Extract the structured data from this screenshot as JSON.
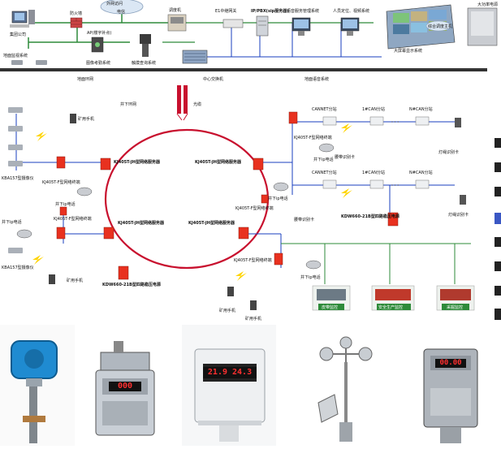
{
  "top": {
    "group_company": "集团公司",
    "firewall": "防火墙",
    "telecom": "电信",
    "outer_net": "外网访问",
    "modem": "调度机",
    "e1_gateway": "E1中继网关",
    "ip_pbx": "IP/PBX(sip服务器)",
    "voice_server": "语音服务管理系统",
    "locate_video": "人员定位、视频系统",
    "ap_ceiling": "AP(楼宇补点)",
    "attendance": "图像考勤系统",
    "touch_query": "触摸查询系统",
    "ground_video": "地面监视系统",
    "big_screen": "大屏幕显示系统",
    "mine_server": "综合调度主机",
    "power_supply": "大功率电源",
    "ground_ring": "地面环网",
    "center_switch": "中心交换机",
    "ground_voice": "地面语音系统"
  },
  "middle": {
    "underground_ring": "井下环网",
    "fiber": "光缆",
    "miner_phone_1": "矿用手机",
    "miner_phone_2": "矿用手机",
    "miner_phone_3": "矿用手机",
    "miner_phone_4": "矿用手机",
    "kba_1": "KBA157型摄像仪",
    "kba_2": "KBA157型摄像仪",
    "kj_term_1": "KJ405T-F型网络终端",
    "kj_term_2": "KJ405T-F型网络终端",
    "kj_term_3": "KJ405T-F型网络终端",
    "kj_term_4": "KJ405T-F型网络终端",
    "kj_term_5": "KJ405T-F型网络终端",
    "kj_server_1": "KJ405T-JH型网络服务器",
    "kj_server_2": "KJ405T-JH型网络服务器",
    "kj_server_3": "KJ405T-JH型网络服务器",
    "kj_server_4": "KJ405T-JH型网络服务器",
    "ip_phone_1": "井下ip电话",
    "ip_phone_2": "井下ip电话",
    "ip_phone_3": "井下ip电话",
    "ip_phone_4": "井下ip电话",
    "ip_phone_5": "井下ip电话",
    "canet_1": "CANNET分站",
    "canet_2": "CANNET分站",
    "can1_1": "1#CAN分站",
    "can1_2": "1#CAN分站",
    "can_n_1": "N#CAN分站",
    "can_n_2": "N#CAN分站",
    "card_1": "腰带识别卡",
    "card_2": "腰带识别卡",
    "lamp_card_1": "灯绳识别卡",
    "lamp_card_2": "灯绳识别卡",
    "kdw_1": "KDW660-21B型四路稳压电源",
    "kdw_2": "KDW660-21B型四路稳压电源",
    "belt_monitor": "皮带监控",
    "safety_monitor": "安全生产监控",
    "mine_monitor": "采掘监控",
    "ellipsis": "· · ·"
  },
  "products": {
    "sensor_2_display": "000",
    "sensor_3_display": "21.9 24.3",
    "sensor_5_display": "00.00"
  },
  "colors": {
    "ring": "#c8102e",
    "node": "#e8311f",
    "link": "#1a3fbf",
    "green_link": "#2e8b3a",
    "bolt": "#ffd400"
  }
}
